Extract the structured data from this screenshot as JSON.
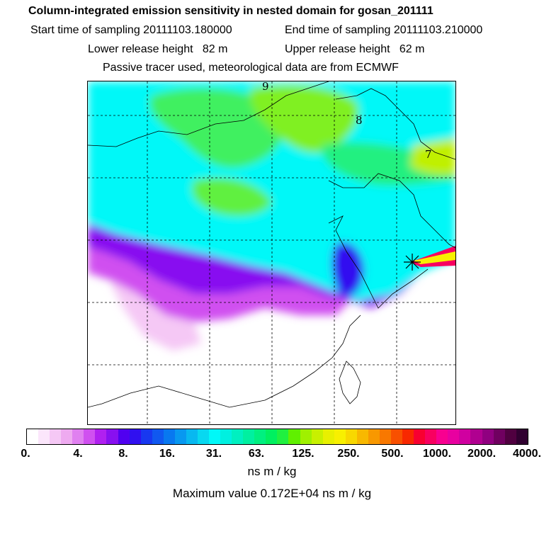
{
  "header": {
    "title": "Column-integrated emission sensitivity in nested domain for gosan_201111",
    "start_time": "Start time of sampling 20111103.180000",
    "end_time": "End time of sampling 20111103.210000",
    "lower_height": "Lower release height   82 m",
    "upper_height": "Upper release height   62 m",
    "note": "Passive tracer used, meteorological data are from ECMWF"
  },
  "map": {
    "contour_labels": [
      "9",
      "8",
      "7"
    ],
    "release_marker": "star-marker"
  },
  "colorbar": {
    "tick_labels": [
      "0.",
      "4.",
      "8.",
      "16.",
      "31.",
      "63.",
      "125.",
      "250.",
      "500.",
      "1000.",
      "2000.",
      "4000."
    ],
    "colors": [
      "#ffffff",
      "#fbe6fb",
      "#f5c8f5",
      "#eeaaf0",
      "#e080f0",
      "#d050f0",
      "#b020f0",
      "#8810f0",
      "#5000f0",
      "#3010f0",
      "#1838f0",
      "#1058f0",
      "#0878f0",
      "#0898f0",
      "#08b8f0",
      "#08d8f0",
      "#00f8f8",
      "#00f0e0",
      "#00f0c0",
      "#00f0a0",
      "#00f080",
      "#00f060",
      "#20f040",
      "#60f000",
      "#a0f000",
      "#c8f000",
      "#e8f000",
      "#f8f000",
      "#f8d800",
      "#f8b800",
      "#f89800",
      "#f87800",
      "#f85000",
      "#f82800",
      "#f80030",
      "#f80060",
      "#f80090",
      "#e800a0",
      "#d000a0",
      "#b00090",
      "#900080",
      "#700060",
      "#500040",
      "#300030"
    ]
  },
  "units": "ns m / kg",
  "max_value": "Maximum value  0.172E+04 ns m / kg"
}
